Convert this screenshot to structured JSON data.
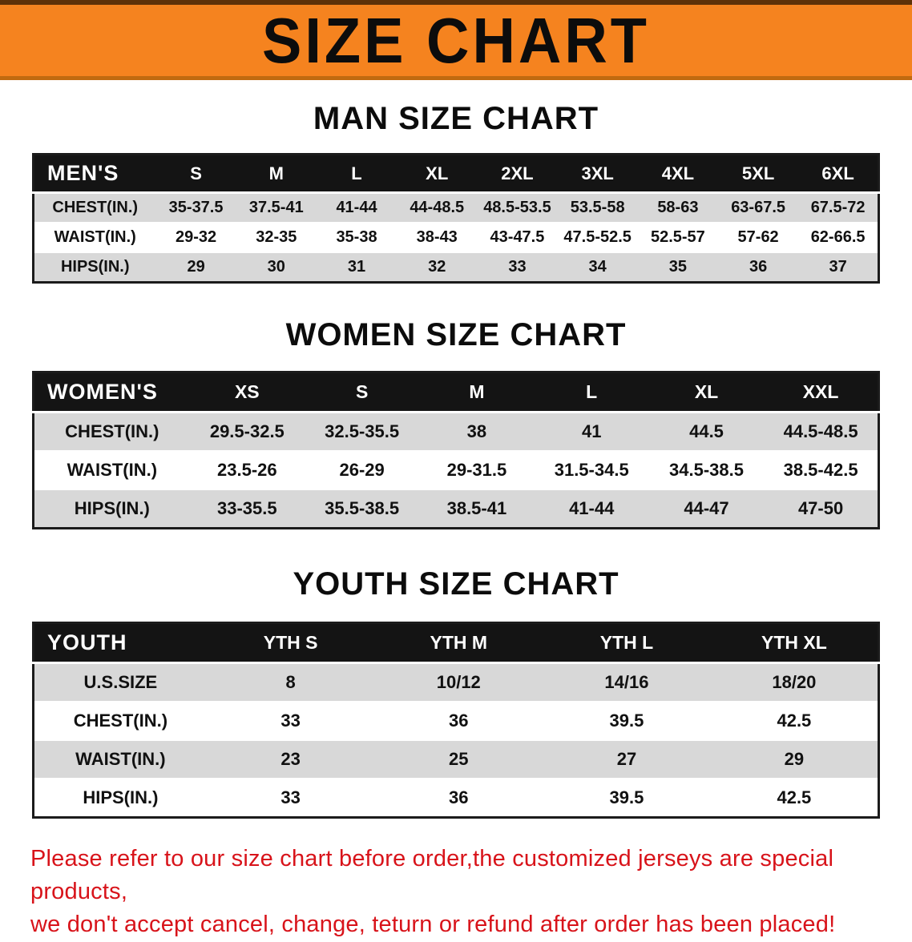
{
  "banner": {
    "title": "SIZE CHART"
  },
  "colors": {
    "banner_bg": "#f5831f",
    "table_header_bg": "#141414",
    "row_alt_bg": "#d8d8d8",
    "footer_text": "#d8131a"
  },
  "sections": [
    {
      "id": "men",
      "heading": "MAN SIZE CHART",
      "table": {
        "header": [
          "MEN'S",
          "S",
          "M",
          "L",
          "XL",
          "2XL",
          "3XL",
          "4XL",
          "5XL",
          "6XL"
        ],
        "rows": [
          [
            "CHEST(IN.)",
            "35-37.5",
            "37.5-41",
            "41-44",
            "44-48.5",
            "48.5-53.5",
            "53.5-58",
            "58-63",
            "63-67.5",
            "67.5-72"
          ],
          [
            "WAIST(IN.)",
            "29-32",
            "32-35",
            "35-38",
            "38-43",
            "43-47.5",
            "47.5-52.5",
            "52.5-57",
            "57-62",
            "62-66.5"
          ],
          [
            "HIPS(IN.)",
            "29",
            "30",
            "31",
            "32",
            "33",
            "34",
            "35",
            "36",
            "37"
          ]
        ]
      }
    },
    {
      "id": "women",
      "heading": "WOMEN SIZE CHART",
      "table": {
        "header": [
          "WOMEN'S",
          "XS",
          "S",
          "M",
          "L",
          "XL",
          "XXL"
        ],
        "rows": [
          [
            "CHEST(IN.)",
            "29.5-32.5",
            "32.5-35.5",
            "38",
            "41",
            "44.5",
            "44.5-48.5"
          ],
          [
            "WAIST(IN.)",
            "23.5-26",
            "26-29",
            "29-31.5",
            "31.5-34.5",
            "34.5-38.5",
            "38.5-42.5"
          ],
          [
            "HIPS(IN.)",
            "33-35.5",
            "35.5-38.5",
            "38.5-41",
            "41-44",
            "44-47",
            "47-50"
          ]
        ]
      }
    },
    {
      "id": "youth",
      "heading": "YOUTH SIZE CHART",
      "table": {
        "header": [
          "YOUTH",
          "YTH S",
          "YTH M",
          "YTH L",
          "YTH XL"
        ],
        "rows": [
          [
            "U.S.SIZE",
            "8",
            "10/12",
            "14/16",
            "18/20"
          ],
          [
            "CHEST(IN.)",
            "33",
            "36",
            "39.5",
            "42.5"
          ],
          [
            "WAIST(IN.)",
            "23",
            "25",
            "27",
            "29"
          ],
          [
            "HIPS(IN.)",
            "33",
            "36",
            "39.5",
            "42.5"
          ]
        ]
      }
    }
  ],
  "footer": {
    "lines": [
      "Please refer to our size chart before order,the customized jerseys are special products,",
      "we don't accept cancel, change, teturn or refund after order has been placed!"
    ]
  }
}
